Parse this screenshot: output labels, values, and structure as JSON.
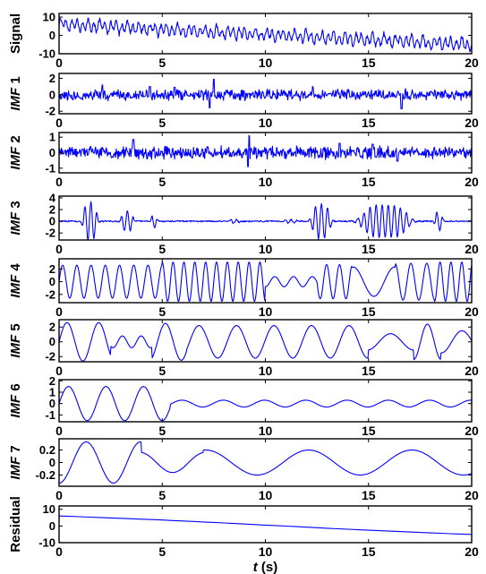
{
  "chart_data": {
    "type": "line",
    "line_color": "#0000ff",
    "xlabel_var": "t",
    "xlabel_unit": " (s)",
    "xlim": [
      0,
      20
    ],
    "xticks": [
      "0",
      "5",
      "10",
      "15",
      "20"
    ],
    "panels": [
      {
        "name": "Signal",
        "ylabel_parts": [
          [
            "Signal",
            false
          ]
        ],
        "ylim": [
          -10,
          12
        ],
        "yticks": [
          {
            "v": 10,
            "label": "10"
          },
          {
            "v": 0,
            "label": "0"
          },
          {
            "v": -10,
            "label": "-10"
          }
        ],
        "series": {
          "kind": "sum",
          "trend_start": 6,
          "trend_end": -5,
          "noise": 1.2,
          "amp": 2.6,
          "cycles": 74,
          "seed": 1
        }
      },
      {
        "name": "IMF 1",
        "ylabel_parts": [
          [
            "IMF",
            true
          ],
          [
            " 1",
            false
          ]
        ],
        "ylim": [
          -2.3,
          2.6
        ],
        "yticks": [
          {
            "v": 2,
            "label": "2"
          },
          {
            "v": 0,
            "label": "0"
          },
          {
            "v": -2,
            "label": "-2"
          }
        ],
        "series": {
          "kind": "noise",
          "amp": 0.5,
          "spikes": [
            [
              7.5,
              1.9
            ],
            [
              7.3,
              -1.6
            ],
            [
              2.1,
              1.2
            ],
            [
              16.6,
              -1.7
            ],
            [
              12.3,
              1.0
            ],
            [
              4.4,
              1.0
            ],
            [
              5.6,
              0.9
            ]
          ],
          "seed": 2
        }
      },
      {
        "name": "IMF 2",
        "ylabel_parts": [
          [
            "IMF",
            true
          ],
          [
            " 2",
            false
          ]
        ],
        "ylim": [
          -1.3,
          1.3
        ],
        "yticks": [
          {
            "v": 1,
            "label": "1"
          },
          {
            "v": 0,
            "label": "0"
          },
          {
            "v": -1,
            "label": "-1"
          }
        ],
        "series": {
          "kind": "noise",
          "amp": 0.32,
          "spikes": [
            [
              3.6,
              0.85
            ],
            [
              9.2,
              1.1
            ],
            [
              9.15,
              -0.9
            ],
            [
              13.6,
              0.6
            ],
            [
              15.2,
              0.55
            ],
            [
              16.4,
              -0.55
            ]
          ],
          "seed": 3
        }
      },
      {
        "name": "IMF 3",
        "ylabel_parts": [
          [
            "IMF",
            true
          ],
          [
            " 3",
            false
          ]
        ],
        "ylim": [
          -3.2,
          4.3
        ],
        "yticks": [
          {
            "v": 4,
            "label": "4"
          },
          {
            "v": 2,
            "label": "2"
          },
          {
            "v": 0,
            "label": "0"
          },
          {
            "v": -2,
            "label": "-2"
          }
        ],
        "series": {
          "kind": "bursts",
          "cycles": 68,
          "noise": 0.12,
          "bursts": [
            [
              1.5,
              0.35,
              3.3
            ],
            [
              3.3,
              0.3,
              1.7
            ],
            [
              4.6,
              0.15,
              1.1
            ],
            [
              8.5,
              0.25,
              0.35
            ],
            [
              11.2,
              0.35,
              0.3
            ],
            [
              12.7,
              0.45,
              3.0
            ],
            [
              15.8,
              1.15,
              2.8
            ],
            [
              18.4,
              0.2,
              1.6
            ]
          ]
        }
      },
      {
        "name": "IMF 4",
        "ylabel_parts": [
          [
            "IMF",
            true
          ],
          [
            " 4",
            false
          ]
        ],
        "ylim": [
          -3.3,
          3.6
        ],
        "yticks": [
          {
            "v": 2,
            "label": "2"
          },
          {
            "v": 0,
            "label": "0"
          },
          {
            "v": -2,
            "label": "-2"
          }
        ],
        "series": {
          "kind": "fm",
          "segments": [
            [
              0,
              5,
              1.45,
              2.6
            ],
            [
              5,
              10,
              1.9,
              3.1
            ],
            [
              10,
              12.5,
              1.1,
              0.8
            ],
            [
              12.5,
              14.2,
              1.6,
              2.7
            ],
            [
              14.2,
              16.3,
              0.5,
              2.3
            ],
            [
              16.3,
              18.2,
              1.3,
              2.9
            ],
            [
              18.2,
              20,
              1.9,
              3.1
            ]
          ]
        }
      },
      {
        "name": "IMF 5",
        "ylabel_parts": [
          [
            "IMF",
            true
          ],
          [
            " 5",
            false
          ]
        ],
        "ylim": [
          -2.7,
          3.0
        ],
        "yticks": [
          {
            "v": 2,
            "label": "2"
          },
          {
            "v": 0,
            "label": "0"
          },
          {
            "v": -2,
            "label": "-2"
          }
        ],
        "series": {
          "kind": "fm",
          "segments": [
            [
              0,
              2.5,
              0.65,
              2.6
            ],
            [
              2.5,
              4.5,
              1.1,
              0.8
            ],
            [
              4.5,
              6.2,
              0.65,
              2.5
            ],
            [
              6.2,
              15,
              0.55,
              2.2
            ],
            [
              15,
              17.2,
              0.45,
              1.1
            ],
            [
              17.2,
              18.5,
              0.75,
              2.4
            ],
            [
              18.5,
              20,
              0.5,
              1.5
            ]
          ]
        }
      },
      {
        "name": "IMF 6",
        "ylabel_parts": [
          [
            "IMF",
            true
          ],
          [
            " 6",
            false
          ]
        ],
        "ylim": [
          -1.6,
          2.1
        ],
        "yticks": [
          {
            "v": 2,
            "label": "2"
          },
          {
            "v": 1,
            "label": "1"
          },
          {
            "v": 0,
            "label": "0"
          },
          {
            "v": -1,
            "label": "-1"
          }
        ],
        "series": {
          "kind": "fm",
          "segments": [
            [
              0,
              5.4,
              0.55,
              1.5
            ],
            [
              5.4,
              20,
              0.5,
              0.3
            ]
          ]
        }
      },
      {
        "name": "IMF 7",
        "ylabel_parts": [
          [
            "IMF",
            true
          ],
          [
            " 7",
            false
          ]
        ],
        "ylim": [
          -0.38,
          0.38
        ],
        "yticks": [
          {
            "v": 0.2,
            "label": "0.2"
          },
          {
            "v": 0,
            "label": "0"
          },
          {
            "v": -0.2,
            "label": "-0.2"
          }
        ],
        "series": {
          "kind": "fm",
          "phase": -1.57,
          "segments": [
            [
              0,
              4,
              0.38,
              0.33
            ],
            [
              4,
              7,
              0.32,
              0.16
            ],
            [
              7,
              20,
              0.2,
              0.2
            ]
          ]
        }
      },
      {
        "name": "Residual",
        "ylabel_parts": [
          [
            "Residual",
            false
          ]
        ],
        "ylim": [
          -10,
          12
        ],
        "yticks": [
          {
            "v": 10,
            "label": "10"
          },
          {
            "v": 0,
            "label": "0"
          },
          {
            "v": -10,
            "label": "-10"
          }
        ],
        "series": {
          "kind": "trend",
          "y_start": 6,
          "y_end": -5
        }
      }
    ]
  }
}
